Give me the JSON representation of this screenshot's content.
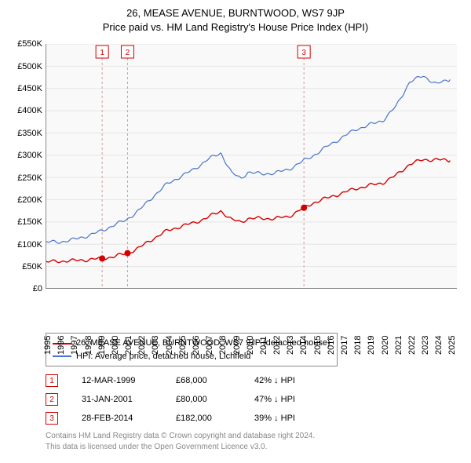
{
  "title_line1": "26, MEASE AVENUE, BURNTWOOD, WS7 9JP",
  "title_line2": "Price paid vs. HM Land Registry's House Price Index (HPI)",
  "chart": {
    "type": "line",
    "background_color": "#f9f9f9",
    "grid_color": "#e5e5e5",
    "axis_color": "#888888",
    "tick_fontsize": 11,
    "x": {
      "min": 1995,
      "max": 2025.5,
      "ticks": [
        1995,
        1996,
        1997,
        1998,
        1999,
        2000,
        2001,
        2002,
        2003,
        2004,
        2005,
        2006,
        2007,
        2008,
        2009,
        2010,
        2011,
        2012,
        2013,
        2014,
        2015,
        2016,
        2017,
        2018,
        2019,
        2020,
        2021,
        2022,
        2023,
        2024,
        2025
      ]
    },
    "y": {
      "min": 0,
      "max": 550000,
      "step": 50000,
      "ticks": [
        "£0",
        "£50K",
        "£100K",
        "£150K",
        "£200K",
        "£250K",
        "£300K",
        "£350K",
        "£400K",
        "£450K",
        "£500K",
        "£550K"
      ]
    },
    "series": [
      {
        "name": "price_paid",
        "label": "26, MEASE AVENUE, BURNTWOOD, WS7 9JP (detached house)",
        "color": "#d40000",
        "width": 1.4,
        "data": [
          [
            1995,
            60000
          ],
          [
            1996,
            62000
          ],
          [
            1997,
            63000
          ],
          [
            1998,
            65000
          ],
          [
            1999.2,
            68000
          ],
          [
            2000,
            72000
          ],
          [
            2001.08,
            80000
          ],
          [
            2002,
            93000
          ],
          [
            2003,
            113000
          ],
          [
            2004,
            130000
          ],
          [
            2005,
            140000
          ],
          [
            2006,
            148000
          ],
          [
            2007,
            160000
          ],
          [
            2008,
            175000
          ],
          [
            2008.8,
            155000
          ],
          [
            2009.5,
            150000
          ],
          [
            2010,
            158000
          ],
          [
            2011,
            158000
          ],
          [
            2012,
            158000
          ],
          [
            2013,
            162000
          ],
          [
            2014.16,
            182000
          ],
          [
            2015,
            195000
          ],
          [
            2016,
            205000
          ],
          [
            2017,
            215000
          ],
          [
            2018,
            225000
          ],
          [
            2019,
            232000
          ],
          [
            2020,
            238000
          ],
          [
            2021,
            255000
          ],
          [
            2022,
            280000
          ],
          [
            2023,
            290000
          ],
          [
            2024,
            290000
          ],
          [
            2025,
            288000
          ]
        ]
      },
      {
        "name": "hpi",
        "label": "HPI: Average price, detached house, Lichfield",
        "color": "#4a74c9",
        "width": 1.2,
        "data": [
          [
            1995,
            105000
          ],
          [
            1996,
            105000
          ],
          [
            1997,
            110000
          ],
          [
            1998,
            118000
          ],
          [
            1999,
            128000
          ],
          [
            2000,
            142000
          ],
          [
            2001,
            155000
          ],
          [
            2002,
            178000
          ],
          [
            2003,
            208000
          ],
          [
            2004,
            235000
          ],
          [
            2005,
            252000
          ],
          [
            2006,
            268000
          ],
          [
            2007,
            290000
          ],
          [
            2008,
            305000
          ],
          [
            2008.8,
            260000
          ],
          [
            2009.5,
            248000
          ],
          [
            2010,
            262000
          ],
          [
            2011,
            258000
          ],
          [
            2012,
            260000
          ],
          [
            2013,
            268000
          ],
          [
            2014,
            285000
          ],
          [
            2015,
            302000
          ],
          [
            2016,
            322000
          ],
          [
            2017,
            340000
          ],
          [
            2018,
            358000
          ],
          [
            2019,
            368000
          ],
          [
            2020,
            378000
          ],
          [
            2021,
            410000
          ],
          [
            2022,
            465000
          ],
          [
            2023,
            478000
          ],
          [
            2024,
            460000
          ],
          [
            2025,
            470000
          ]
        ]
      }
    ],
    "markers": [
      {
        "n": "1",
        "x": 1999.2,
        "y": 68000,
        "color": "#d40000"
      },
      {
        "n": "2",
        "x": 2001.08,
        "y": 80000,
        "color": "#d40000"
      },
      {
        "n": "3",
        "x": 2014.16,
        "y": 182000,
        "color": "#d40000"
      }
    ],
    "marker_box_y_top": 6,
    "vline_color": "#d49a9a",
    "vline_dash": "3,3"
  },
  "legend": {
    "border_color": "#888888",
    "fontsize": 11,
    "items": [
      {
        "color": "#d40000",
        "label": "26, MEASE AVENUE, BURNTWOOD, WS7 9JP (detached house)"
      },
      {
        "color": "#4a74c9",
        "label": "HPI: Average price, detached house, Lichfield"
      }
    ]
  },
  "events": [
    {
      "n": "1",
      "color": "#d40000",
      "date": "12-MAR-1999",
      "price": "£68,000",
      "hpi": "42% ↓ HPI"
    },
    {
      "n": "2",
      "color": "#d40000",
      "date": "31-JAN-2001",
      "price": "£80,000",
      "hpi": "47% ↓ HPI"
    },
    {
      "n": "3",
      "color": "#d40000",
      "date": "28-FEB-2014",
      "price": "£182,000",
      "hpi": "39% ↓ HPI"
    }
  ],
  "footer_line1": "Contains HM Land Registry data © Crown copyright and database right 2024.",
  "footer_line2": "This data is licensed under the Open Government Licence v3.0."
}
